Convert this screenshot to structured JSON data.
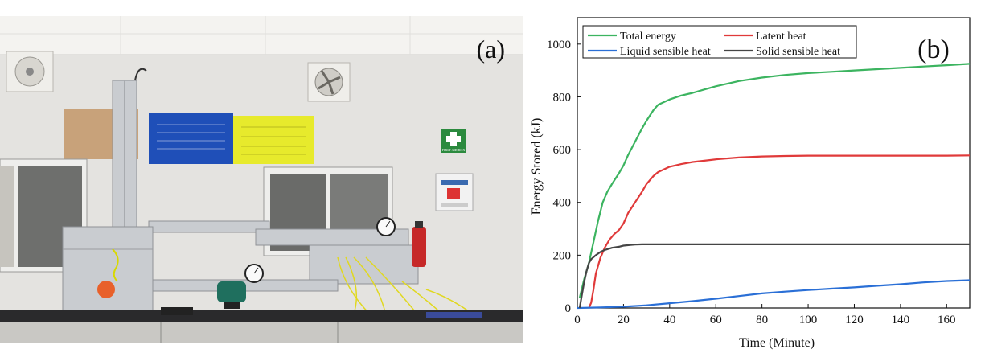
{
  "photo": {
    "label": "(a)",
    "first_aid_text": "FIRST AID BOX",
    "colors": {
      "wall": "#e4e3e0",
      "ceiling": "#f4f3f0",
      "bench": "#2a2a2c",
      "poster_brown": "#c8a27a",
      "poster_blue": "#1f4fb8",
      "poster_yellow": "#e7ea2c",
      "sign_green": "#2b8a3e",
      "metal": "#c9ccd0"
    }
  },
  "chart_data": {
    "type": "line",
    "panel_label": "(b)",
    "xlabel": "Time (Minute)",
    "ylabel": "Energy Stored (kJ)",
    "xlim": [
      0,
      170
    ],
    "ylim": [
      0,
      1100
    ],
    "xticks": [
      0,
      20,
      40,
      60,
      80,
      100,
      120,
      140,
      160
    ],
    "yticks": [
      0,
      200,
      400,
      600,
      800,
      1000
    ],
    "grid": false,
    "legend_position": "top-left",
    "series": [
      {
        "name": "Total energy",
        "color": "#3cb460",
        "x": [
          1,
          3,
          5,
          7,
          9,
          11,
          13,
          15,
          18,
          20,
          22,
          25,
          28,
          30,
          33,
          35,
          40,
          45,
          50,
          55,
          60,
          70,
          80,
          90,
          100,
          110,
          120,
          130,
          140,
          150,
          160,
          170
        ],
        "y": [
          38,
          110,
          170,
          250,
          330,
          400,
          440,
          470,
          510,
          540,
          580,
          630,
          680,
          710,
          750,
          770,
          790,
          805,
          815,
          828,
          840,
          860,
          873,
          883,
          890,
          895,
          900,
          905,
          910,
          915,
          920,
          925
        ]
      },
      {
        "name": "Latent heat",
        "color": "#e03a3a",
        "x": [
          5,
          6,
          7,
          8,
          10,
          12,
          14,
          16,
          18,
          20,
          22,
          25,
          28,
          30,
          33,
          35,
          40,
          45,
          50,
          55,
          60,
          70,
          80,
          90,
          100,
          120,
          140,
          160,
          170
        ],
        "y": [
          0,
          20,
          70,
          130,
          190,
          230,
          260,
          280,
          295,
          320,
          360,
          400,
          440,
          470,
          500,
          515,
          535,
          545,
          553,
          558,
          563,
          570,
          574,
          576,
          577,
          577,
          577,
          577,
          578
        ]
      },
      {
        "name": "Liquid sensible heat",
        "color": "#2a6fd6",
        "x": [
          0,
          10,
          20,
          30,
          40,
          50,
          60,
          70,
          80,
          90,
          100,
          110,
          120,
          130,
          140,
          150,
          160,
          170
        ],
        "y": [
          0,
          2,
          5,
          10,
          18,
          26,
          35,
          45,
          55,
          62,
          68,
          73,
          78,
          84,
          90,
          97,
          102,
          105
        ]
      },
      {
        "name": "Solid sensible heat",
        "color": "#454545",
        "x": [
          1,
          2,
          3,
          4,
          5,
          6,
          8,
          10,
          12,
          15,
          18,
          20,
          23,
          25,
          28,
          30,
          40,
          60,
          80,
          100,
          120,
          140,
          160,
          170
        ],
        "y": [
          0,
          50,
          100,
          140,
          170,
          185,
          200,
          212,
          220,
          228,
          232,
          236,
          239,
          240,
          241,
          241,
          241,
          241,
          241,
          241,
          241,
          241,
          241,
          241
        ]
      }
    ]
  }
}
